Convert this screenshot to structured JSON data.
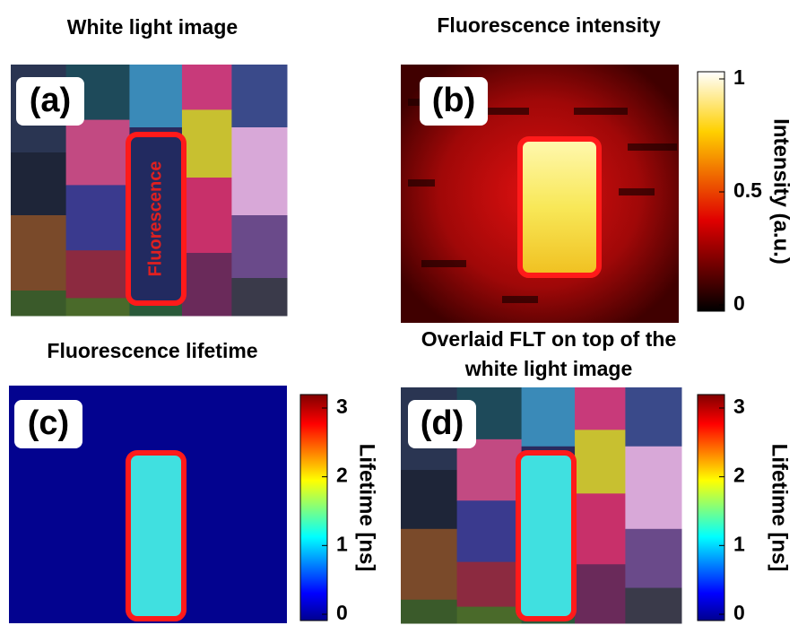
{
  "panels": [
    {
      "label": "(a)",
      "title": "White light image",
      "annotation": "Fluorescence"
    },
    {
      "label": "(b)",
      "title": "Fluorescence intensity",
      "colorbar": {
        "label": "Intensity (a.u.)",
        "lim": [
          0,
          1
        ],
        "ticks": [
          0,
          0.5,
          1
        ]
      }
    },
    {
      "label": "(c)",
      "title": "Fluorescence lifetime",
      "colorbar": {
        "label": "Lifetime [ns]",
        "lim": [
          0,
          3
        ],
        "ticks": [
          0,
          1,
          2,
          3
        ]
      }
    },
    {
      "label": "(d)",
      "title": [
        "Overlaid FLT on top of the",
        "white light image"
      ],
      "colorbar": {
        "label": "Lifetime [ns]",
        "lim": [
          0,
          3
        ],
        "ticks": [
          0,
          1,
          2,
          3
        ]
      }
    }
  ]
}
